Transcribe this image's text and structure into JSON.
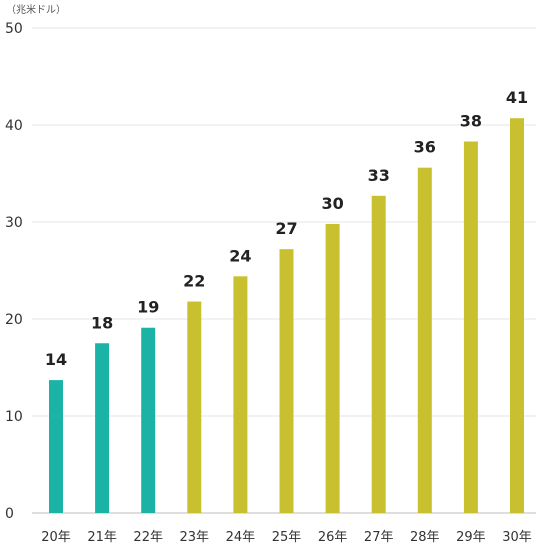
{
  "chart_data": {
    "type": "bar",
    "unit_label": "（兆米ドル）",
    "categories": [
      "20年",
      "21年",
      "22年",
      "23年",
      "24年",
      "25年",
      "26年",
      "27年",
      "28年",
      "29年",
      "30年"
    ],
    "values": [
      14,
      18,
      19,
      22,
      24,
      27,
      30,
      33,
      36,
      38,
      41
    ],
    "data_labels": [
      "14",
      "18",
      "19",
      "22",
      "24",
      "27",
      "30",
      "33",
      "36",
      "38",
      "41"
    ],
    "bar_values": [
      13.7,
      17.5,
      19.1,
      21.8,
      24.4,
      27.2,
      29.8,
      32.7,
      35.6,
      38.3,
      40.7
    ],
    "bar_colors": [
      "#1ab3a6",
      "#1ab3a6",
      "#1ab3a6",
      "#c9c030",
      "#c9c030",
      "#c9c030",
      "#c9c030",
      "#c9c030",
      "#c9c030",
      "#c9c030",
      "#c9c030"
    ],
    "ylim": [
      0,
      50
    ],
    "yticks": [
      0,
      10,
      20,
      30,
      40,
      50
    ],
    "grid": true,
    "title": "",
    "xlabel": "",
    "ylabel": ""
  }
}
